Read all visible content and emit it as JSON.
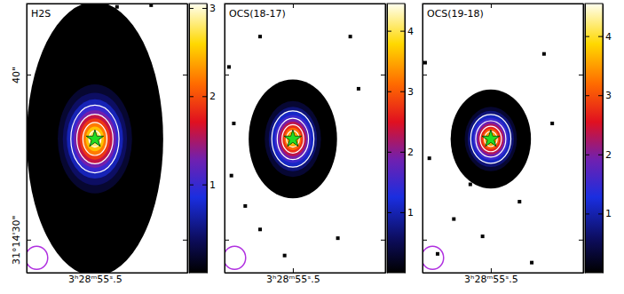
{
  "chart_data": [
    {
      "type": "image",
      "title": "H2S",
      "marker": "star",
      "xlim": [
        55.84,
        55.04
      ],
      "ylim": [
        28.0,
        44.3
      ],
      "xticks": [
        {
          "value": 55.5,
          "label": "3ʰ28ᵐ55ˢ.5"
        }
      ],
      "yticks": [
        {
          "value": 30,
          "label": "31°14'30\""
        },
        {
          "value": 40,
          "label": "40\""
        }
      ],
      "colorbar_range": [
        0,
        3.05
      ],
      "colorbar_ticks": [
        1,
        2,
        3
      ],
      "peak": {
        "x": 55.5,
        "y": 36.1
      },
      "rings": [
        {
          "level": 0.0,
          "rx": 0.34,
          "ry": 8.3
        },
        {
          "level": 0.2,
          "rx": 0.185,
          "ry": 3.3
        },
        {
          "level": 0.4,
          "rx": 0.16,
          "ry": 2.8
        },
        {
          "level": 0.7,
          "rx": 0.14,
          "ry": 2.4
        },
        {
          "level": 1.0,
          "rx": 0.12,
          "ry": 2.05
        },
        {
          "level": 1.3,
          "rx": 0.105,
          "ry": 1.75
        },
        {
          "level": 1.6,
          "rx": 0.09,
          "ry": 1.5
        },
        {
          "level": 1.9,
          "rx": 0.075,
          "ry": 1.25
        },
        {
          "level": 2.2,
          "rx": 0.06,
          "ry": 1.0
        },
        {
          "level": 2.5,
          "rx": 0.045,
          "ry": 0.75
        },
        {
          "level": 2.8,
          "rx": 0.03,
          "ry": 0.5
        },
        {
          "level": 3.0,
          "rx": 0.015,
          "ry": 0.25
        }
      ],
      "contours": [
        1.0,
        1.6,
        2.2,
        2.8
      ],
      "speckles": [
        [
          55.39,
          44.1
        ],
        [
          55.22,
          44.2
        ]
      ],
      "beam": {
        "x": 55.79,
        "y": 28.9,
        "rx": 0.055,
        "ry": 0.7
      }
    },
    {
      "type": "image",
      "title": "OCS(18-17)",
      "marker": "star",
      "tick_labels": "x",
      "xlim": [
        55.84,
        55.04
      ],
      "ylim": [
        28.0,
        44.3
      ],
      "xticks": [
        {
          "value": 55.5,
          "label": "3ʰ28ᵐ55ˢ.5"
        }
      ],
      "yticks": [
        30,
        40
      ],
      "colorbar_range": [
        0,
        4.45
      ],
      "colorbar_ticks": [
        1,
        2,
        3,
        4
      ],
      "peak": {
        "x": 55.5,
        "y": 36.1
      },
      "rings": [
        {
          "level": 0.0,
          "rx": 0.22,
          "ry": 3.6
        },
        {
          "level": 0.3,
          "rx": 0.14,
          "ry": 2.3
        },
        {
          "level": 0.7,
          "rx": 0.12,
          "ry": 1.95
        },
        {
          "level": 1.1,
          "rx": 0.105,
          "ry": 1.7
        },
        {
          "level": 1.5,
          "rx": 0.09,
          "ry": 1.45
        },
        {
          "level": 1.9,
          "rx": 0.078,
          "ry": 1.25
        },
        {
          "level": 2.3,
          "rx": 0.066,
          "ry": 1.05
        },
        {
          "level": 2.7,
          "rx": 0.054,
          "ry": 0.86
        },
        {
          "level": 3.1,
          "rx": 0.043,
          "ry": 0.68
        },
        {
          "level": 3.5,
          "rx": 0.032,
          "ry": 0.5
        },
        {
          "level": 3.9,
          "rx": 0.021,
          "ry": 0.33
        },
        {
          "level": 4.3,
          "rx": 0.01,
          "ry": 0.16
        }
      ],
      "contours": [
        1.1,
        1.9,
        2.7,
        3.5
      ],
      "speckles": [
        [
          55.818,
          40.46
        ],
        [
          55.794,
          37.04
        ],
        [
          55.806,
          33.88
        ],
        [
          55.737,
          32.04
        ],
        [
          55.663,
          30.62
        ],
        [
          55.214,
          42.3
        ],
        [
          55.173,
          39.14
        ],
        [
          55.276,
          30.09
        ],
        [
          55.541,
          29.04
        ],
        [
          55.41,
          33.09
        ],
        [
          55.663,
          42.3
        ]
      ],
      "beam": {
        "x": 55.79,
        "y": 28.9,
        "rx": 0.055,
        "ry": 0.7
      }
    },
    {
      "type": "image",
      "title": "OCS(19-18)",
      "marker": "star",
      "tick_labels": "x",
      "xlim": [
        55.84,
        55.04
      ],
      "ylim": [
        28.0,
        44.3
      ],
      "xticks": [
        {
          "value": 55.5,
          "label": "3ʰ28ᵐ55ˢ.5"
        }
      ],
      "yticks": [
        30,
        40
      ],
      "colorbar_range": [
        0,
        4.55
      ],
      "colorbar_ticks": [
        1,
        2,
        3,
        4
      ],
      "peak": {
        "x": 55.5,
        "y": 36.1
      },
      "rings": [
        {
          "level": 0.0,
          "rx": 0.2,
          "ry": 3.0
        },
        {
          "level": 0.3,
          "rx": 0.13,
          "ry": 1.95
        },
        {
          "level": 0.7,
          "rx": 0.115,
          "ry": 1.7
        },
        {
          "level": 1.1,
          "rx": 0.1,
          "ry": 1.48
        },
        {
          "level": 1.5,
          "rx": 0.087,
          "ry": 1.28
        },
        {
          "level": 1.9,
          "rx": 0.075,
          "ry": 1.1
        },
        {
          "level": 2.3,
          "rx": 0.064,
          "ry": 0.93
        },
        {
          "level": 2.7,
          "rx": 0.053,
          "ry": 0.77
        },
        {
          "level": 3.1,
          "rx": 0.042,
          "ry": 0.61
        },
        {
          "level": 3.5,
          "rx": 0.032,
          "ry": 0.46
        },
        {
          "level": 3.9,
          "rx": 0.021,
          "ry": 0.31
        },
        {
          "level": 4.4,
          "rx": 0.01,
          "ry": 0.15
        }
      ],
      "contours": [
        1.1,
        1.9,
        2.7,
        3.5
      ],
      "speckles": [
        [
          55.827,
          40.72
        ],
        [
          55.806,
          34.93
        ],
        [
          55.684,
          31.25
        ],
        [
          55.602,
          33.35
        ],
        [
          55.357,
          32.3
        ],
        [
          55.235,
          41.25
        ],
        [
          55.765,
          29.14
        ],
        [
          55.296,
          28.61
        ],
        [
          55.541,
          30.2
        ],
        [
          55.194,
          37.04
        ]
      ],
      "beam": {
        "x": 55.79,
        "y": 28.9,
        "rx": 0.055,
        "ry": 0.7
      }
    }
  ]
}
